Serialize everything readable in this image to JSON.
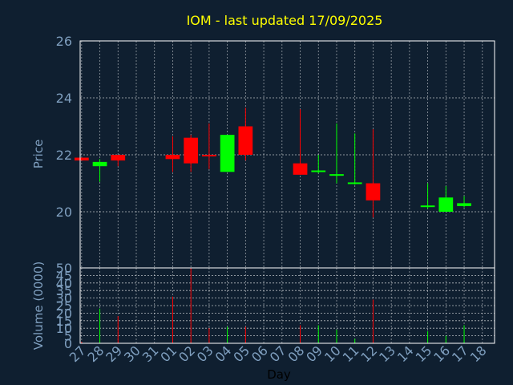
{
  "title": "IOM - last updated 17/09/2025",
  "colors": {
    "background": "#0f1f30",
    "title": "#ffff00",
    "axis_text": "#7f9fbf",
    "grid": "#ffffff",
    "up": "#00ff00",
    "down": "#ff0000"
  },
  "chart_data": [
    {
      "type": "candlestick",
      "ylabel": "Price",
      "ylim": [
        20,
        26
      ],
      "yticks": [
        20,
        22,
        24,
        26
      ],
      "grid": true,
      "x": [
        "27",
        "28",
        "29",
        "30",
        "31",
        "01",
        "02",
        "03",
        "04",
        "05",
        "06",
        "07",
        "08",
        "09",
        "10",
        "11",
        "12",
        "13",
        "14",
        "15",
        "16",
        "17",
        "18"
      ],
      "candles": [
        {
          "x": "27",
          "open": 21.9,
          "close": 21.8,
          "high": 21.9,
          "low": 21.8
        },
        {
          "x": "28",
          "open": 21.6,
          "close": 21.75,
          "high": 21.85,
          "low": 21.05
        },
        {
          "x": "29",
          "open": 22.0,
          "close": 21.8,
          "high": 22.0,
          "low": 21.6
        },
        {
          "x": "01",
          "open": 22.0,
          "close": 21.85,
          "high": 22.65,
          "low": 21.4
        },
        {
          "x": "02",
          "open": 22.6,
          "close": 21.7,
          "high": 22.7,
          "low": 21.4
        },
        {
          "x": "03",
          "open": 22.0,
          "close": 21.95,
          "high": 23.1,
          "low": 21.5
        },
        {
          "x": "04",
          "open": 21.4,
          "close": 22.7,
          "high": 22.7,
          "low": 21.4
        },
        {
          "x": "05",
          "open": 23.0,
          "close": 22.0,
          "high": 23.65,
          "low": 21.8
        },
        {
          "x": "08",
          "open": 21.7,
          "close": 21.3,
          "high": 23.6,
          "low": 21.3
        },
        {
          "x": "09",
          "open": 21.4,
          "close": 21.45,
          "high": 22.0,
          "low": 21.35
        },
        {
          "x": "10",
          "open": 21.3,
          "close": 21.32,
          "high": 23.1,
          "low": 21.0
        },
        {
          "x": "11",
          "open": 21.0,
          "close": 21.03,
          "high": 22.75,
          "low": 20.95
        },
        {
          "x": "12",
          "open": 21.0,
          "close": 20.4,
          "high": 22.9,
          "low": 19.8
        },
        {
          "x": "15",
          "open": 20.2,
          "close": 20.22,
          "high": 21.0,
          "low": 20.1
        },
        {
          "x": "16",
          "open": 20.0,
          "close": 20.5,
          "high": 20.9,
          "low": 20.0
        },
        {
          "x": "17",
          "open": 20.2,
          "close": 20.3,
          "high": 20.55,
          "low": 20.15
        }
      ]
    },
    {
      "type": "bar",
      "ylabel": "Volume (0000)",
      "xlabel": "Day",
      "ylim": [
        0,
        50
      ],
      "yticks": [
        0,
        5,
        10,
        15,
        20,
        25,
        30,
        35,
        40,
        45,
        50
      ],
      "grid": true,
      "x": [
        "27",
        "28",
        "29",
        "30",
        "31",
        "01",
        "02",
        "03",
        "04",
        "05",
        "06",
        "07",
        "08",
        "09",
        "10",
        "11",
        "12",
        "13",
        "14",
        "15",
        "16",
        "17",
        "18"
      ],
      "bars": [
        {
          "x": "27",
          "value": 1,
          "direction": "down"
        },
        {
          "x": "28",
          "value": 23,
          "direction": "up"
        },
        {
          "x": "29",
          "value": 18,
          "direction": "down"
        },
        {
          "x": "01",
          "value": 31,
          "direction": "down"
        },
        {
          "x": "02",
          "value": 50,
          "direction": "down"
        },
        {
          "x": "03",
          "value": 10,
          "direction": "down"
        },
        {
          "x": "04",
          "value": 11,
          "direction": "up"
        },
        {
          "x": "05",
          "value": 11,
          "direction": "down"
        },
        {
          "x": "08",
          "value": 12,
          "direction": "down"
        },
        {
          "x": "09",
          "value": 12,
          "direction": "up"
        },
        {
          "x": "10",
          "value": 9,
          "direction": "up"
        },
        {
          "x": "11",
          "value": 3,
          "direction": "up"
        },
        {
          "x": "12",
          "value": 29,
          "direction": "down"
        },
        {
          "x": "15",
          "value": 8,
          "direction": "up"
        },
        {
          "x": "16",
          "value": 5,
          "direction": "up"
        },
        {
          "x": "17",
          "value": 12,
          "direction": "up"
        }
      ]
    }
  ]
}
